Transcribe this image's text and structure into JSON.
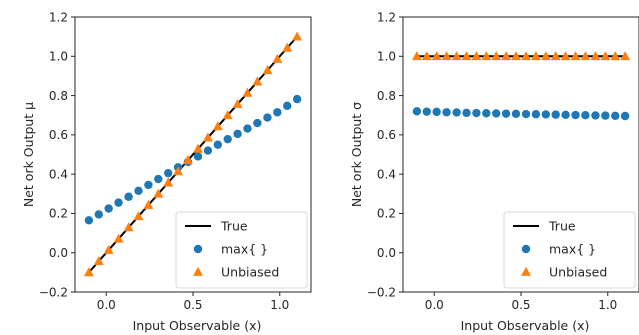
{
  "chart_data": [
    {
      "type": "scatter",
      "xlabel": "Input Observable (x)",
      "ylabel": "Net    ork Output μ",
      "xlim": [
        -0.18,
        1.18
      ],
      "ylim": [
        -0.2,
        1.2
      ],
      "xticks": [
        0.0,
        0.5,
        1.0
      ],
      "xtick_labels": [
        "0.0",
        "0.5",
        "1.0"
      ],
      "yticks": [
        -0.2,
        0.0,
        0.2,
        0.4,
        0.6,
        0.8,
        1.0,
        1.2
      ],
      "ytick_labels": [
        "−0.2",
        "0.0",
        "0.2",
        "0.4",
        "0.6",
        "0.8",
        "1.0",
        "1.2"
      ],
      "legend_position": "lower-right",
      "grid": false,
      "series": [
        {
          "name": "True",
          "kind": "line",
          "color": "#000000",
          "x": [
            -0.1,
            1.1
          ],
          "y": [
            -0.1,
            1.1
          ]
        },
        {
          "name": "max{  }",
          "kind": "circle",
          "color": "#1f77b4",
          "x": [
            -0.1,
            -0.043,
            0.014,
            0.071,
            0.129,
            0.186,
            0.243,
            0.3,
            0.357,
            0.414,
            0.471,
            0.529,
            0.586,
            0.643,
            0.7,
            0.757,
            0.814,
            0.871,
            0.929,
            0.986,
            1.043,
            1.1
          ],
          "y": [
            0.165,
            0.195,
            0.225,
            0.255,
            0.285,
            0.315,
            0.345,
            0.375,
            0.405,
            0.435,
            0.462,
            0.49,
            0.52,
            0.55,
            0.578,
            0.605,
            0.632,
            0.66,
            0.688,
            0.715,
            0.748,
            0.782
          ]
        },
        {
          "name": "Unbiased",
          "kind": "triangle",
          "color": "#ff7f0e",
          "x": [
            -0.1,
            -0.043,
            0.014,
            0.071,
            0.129,
            0.186,
            0.243,
            0.3,
            0.357,
            0.414,
            0.471,
            0.529,
            0.586,
            0.643,
            0.7,
            0.757,
            0.814,
            0.871,
            0.929,
            0.986,
            1.043,
            1.1
          ],
          "y": [
            -0.1,
            -0.043,
            0.014,
            0.071,
            0.129,
            0.186,
            0.243,
            0.3,
            0.357,
            0.414,
            0.471,
            0.529,
            0.586,
            0.643,
            0.7,
            0.757,
            0.814,
            0.871,
            0.929,
            0.986,
            1.043,
            1.1
          ]
        }
      ]
    },
    {
      "type": "scatter",
      "xlabel": "Input Observable (x)",
      "ylabel": "Net    ork Output σ",
      "xlim": [
        -0.18,
        1.18
      ],
      "ylim": [
        -0.2,
        1.2
      ],
      "xticks": [
        0.0,
        0.5,
        1.0
      ],
      "xtick_labels": [
        "0.0",
        "0.5",
        "1.0"
      ],
      "yticks": [
        -0.2,
        0.0,
        0.2,
        0.4,
        0.6,
        0.8,
        1.0,
        1.2
      ],
      "ytick_labels": [
        "−0.2",
        "0.0",
        "0.2",
        "0.4",
        "0.6",
        "0.8",
        "1.0",
        "1.2"
      ],
      "legend_position": "lower-right",
      "grid": false,
      "series": [
        {
          "name": "True",
          "kind": "line",
          "color": "#000000",
          "x": [
            -0.1,
            1.1
          ],
          "y": [
            1.0,
            1.0
          ]
        },
        {
          "name": "max{  }",
          "kind": "circle",
          "color": "#1f77b4",
          "x": [
            -0.1,
            -0.043,
            0.014,
            0.071,
            0.129,
            0.186,
            0.243,
            0.3,
            0.357,
            0.414,
            0.471,
            0.529,
            0.586,
            0.643,
            0.7,
            0.757,
            0.814,
            0.871,
            0.929,
            0.986,
            1.043,
            1.1
          ],
          "y": [
            0.72,
            0.718,
            0.717,
            0.715,
            0.714,
            0.712,
            0.711,
            0.71,
            0.709,
            0.708,
            0.707,
            0.706,
            0.705,
            0.704,
            0.703,
            0.702,
            0.701,
            0.7,
            0.699,
            0.698,
            0.697,
            0.696
          ]
        },
        {
          "name": "Unbiased",
          "kind": "triangle",
          "color": "#ff7f0e",
          "x": [
            -0.1,
            -0.043,
            0.014,
            0.071,
            0.129,
            0.186,
            0.243,
            0.3,
            0.357,
            0.414,
            0.471,
            0.529,
            0.586,
            0.643,
            0.7,
            0.757,
            0.814,
            0.871,
            0.929,
            0.986,
            1.043,
            1.1
          ],
          "y": [
            1.0,
            1.0,
            1.0,
            1.0,
            1.0,
            1.0,
            1.0,
            1.0,
            1.0,
            1.0,
            1.0,
            1.0,
            1.0,
            1.0,
            1.0,
            1.0,
            1.0,
            1.0,
            1.0,
            1.0,
            1.0,
            1.0
          ]
        }
      ]
    }
  ]
}
